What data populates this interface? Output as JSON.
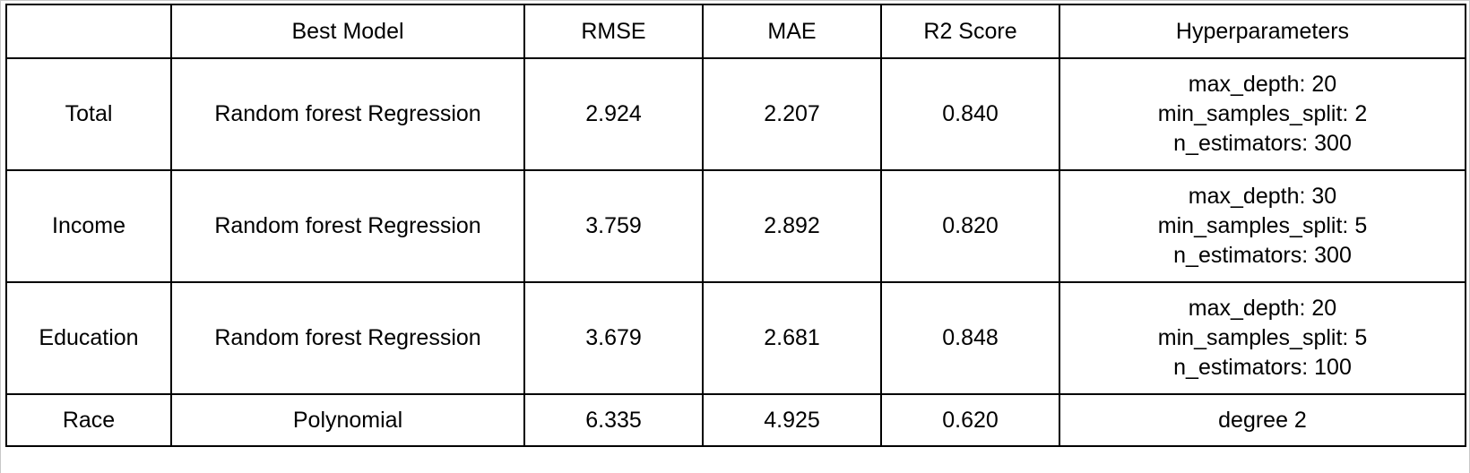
{
  "table": {
    "headers": [
      "",
      "Best Model",
      "RMSE",
      "MAE",
      "R2 Score",
      "Hyperparameters"
    ],
    "rows": [
      {
        "label": "Total",
        "model": "Random forest Regression",
        "rmse": "2.924",
        "mae": "2.207",
        "r2": "0.840",
        "hyperparameters": [
          "max_depth: 20",
          "min_samples_split: 2",
          "n_estimators: 300"
        ]
      },
      {
        "label": "Income",
        "model": "Random forest Regression",
        "rmse": "3.759",
        "mae": "2.892",
        "r2": "0.820",
        "hyperparameters": [
          "max_depth: 30",
          "min_samples_split: 5",
          "n_estimators: 300"
        ]
      },
      {
        "label": "Education",
        "model": "Random forest Regression",
        "rmse": "3.679",
        "mae": "2.681",
        "r2": "0.848",
        "hyperparameters": [
          "max_depth: 20",
          "min_samples_split: 5",
          "n_estimators: 100"
        ]
      },
      {
        "label": "Race",
        "model": "Polynomial",
        "rmse": "6.335",
        "mae": "4.925",
        "r2": "0.620",
        "hyperparameters": [
          "degree 2"
        ]
      }
    ]
  }
}
